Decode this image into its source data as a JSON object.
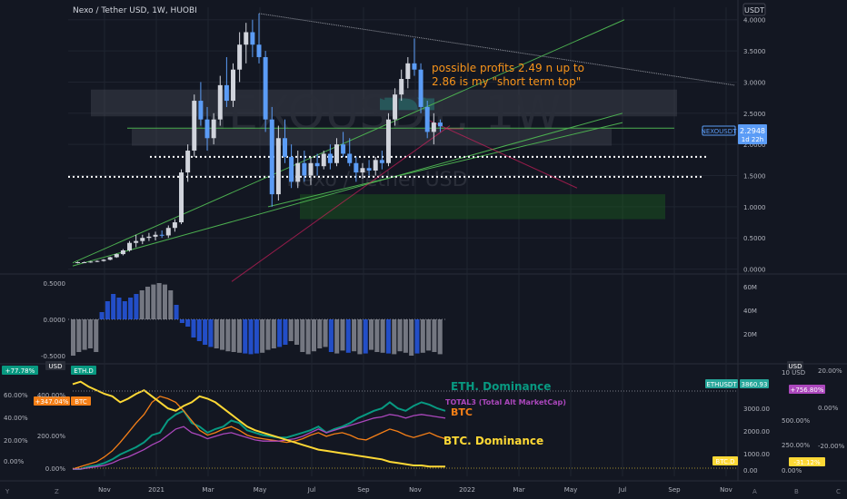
{
  "header": {
    "symbol_title": "Nexo / Tether USD, 1W, HUOBI",
    "watermark": "NEXOUSDT, 1W",
    "watermark_sub": "Nexo / Tether USD"
  },
  "annotation": {
    "line1": "possible profits 2.49 n up to",
    "line2": "2.86 is my \"short term top\""
  },
  "colors": {
    "up": "#d1d4dc",
    "down": "#5b9cf6",
    "annotation": "#f7931a",
    "bg": "#131722",
    "grid": "#1f2430",
    "axis_text": "#b2b5be",
    "eth": "#26a69a",
    "eth_dom": "#089981",
    "btc": "#f57f17",
    "total3": "#ab47bc",
    "btc_dom": "#fdd835",
    "pink": "#e91e63",
    "green_line": "#4caf50"
  },
  "chart_data": [
    {
      "type": "candlestick",
      "title": "Nexo / Tether USD, 1W, HUOBI",
      "y_ticks": [
        "4.0000",
        "3.5000",
        "3.0000",
        "2.5000",
        "2.0000",
        "1.5000",
        "1.0000",
        "0.5000",
        "0.0000"
      ],
      "ylim": [
        -0.05,
        4.2
      ],
      "x_ticks": [
        "Nov",
        "2021",
        "Mar",
        "May",
        "Jul",
        "Sep",
        "Nov",
        "2022",
        "Mar",
        "May",
        "Jul",
        "Sep",
        "Nov"
      ],
      "last_price_label": "NEXOUSDT",
      "last_price": "2.2948",
      "countdown": "1d 22h",
      "candles": [
        [
          0.1,
          0.12,
          0.09,
          0.11
        ],
        [
          0.11,
          0.12,
          0.1,
          0.11
        ],
        [
          0.11,
          0.13,
          0.1,
          0.12
        ],
        [
          0.12,
          0.14,
          0.11,
          0.13
        ],
        [
          0.13,
          0.16,
          0.12,
          0.15
        ],
        [
          0.15,
          0.2,
          0.14,
          0.19
        ],
        [
          0.19,
          0.25,
          0.18,
          0.24
        ],
        [
          0.24,
          0.32,
          0.22,
          0.3
        ],
        [
          0.3,
          0.45,
          0.28,
          0.42
        ],
        [
          0.42,
          0.55,
          0.35,
          0.45
        ],
        [
          0.45,
          0.55,
          0.4,
          0.5
        ],
        [
          0.5,
          0.58,
          0.45,
          0.52
        ],
        [
          0.52,
          0.6,
          0.46,
          0.55
        ],
        [
          0.55,
          0.62,
          0.5,
          0.54
        ],
        [
          0.54,
          0.7,
          0.5,
          0.66
        ],
        [
          0.66,
          0.8,
          0.6,
          0.75
        ],
        [
          0.75,
          1.6,
          0.72,
          1.55
        ],
        [
          1.55,
          2.0,
          1.4,
          1.9
        ],
        [
          1.9,
          2.8,
          1.8,
          2.7
        ],
        [
          2.7,
          3.0,
          2.3,
          2.4
        ],
        [
          2.4,
          2.6,
          1.9,
          2.1
        ],
        [
          2.1,
          2.5,
          2.0,
          2.4
        ],
        [
          2.4,
          3.1,
          2.3,
          2.95
        ],
        [
          2.95,
          3.4,
          2.6,
          2.7
        ],
        [
          2.7,
          3.3,
          2.6,
          3.2
        ],
        [
          3.2,
          3.8,
          3.0,
          3.6
        ],
        [
          3.6,
          3.95,
          3.3,
          3.8
        ],
        [
          3.8,
          4.0,
          3.4,
          3.6
        ],
        [
          3.6,
          4.1,
          3.3,
          3.4
        ],
        [
          3.4,
          3.5,
          2.2,
          2.4
        ],
        [
          2.4,
          2.6,
          1.0,
          1.2
        ],
        [
          1.2,
          2.3,
          1.1,
          2.1
        ],
        [
          2.1,
          2.4,
          1.7,
          1.8
        ],
        [
          1.8,
          2.0,
          1.3,
          1.4
        ],
        [
          1.4,
          1.9,
          1.3,
          1.7
        ],
        [
          1.7,
          1.9,
          1.4,
          1.5
        ],
        [
          1.5,
          1.8,
          1.35,
          1.7
        ],
        [
          1.7,
          1.85,
          1.5,
          1.65
        ],
        [
          1.65,
          1.9,
          1.6,
          1.85
        ],
        [
          1.85,
          2.0,
          1.6,
          1.7
        ],
        [
          1.7,
          2.1,
          1.65,
          2.0
        ],
        [
          2.0,
          2.2,
          1.8,
          1.85
        ],
        [
          1.85,
          2.1,
          1.65,
          1.7
        ],
        [
          1.7,
          1.8,
          1.4,
          1.55
        ],
        [
          1.55,
          1.7,
          1.45,
          1.62
        ],
        [
          1.62,
          1.75,
          1.5,
          1.58
        ],
        [
          1.58,
          1.8,
          1.5,
          1.75
        ],
        [
          1.75,
          1.9,
          1.6,
          1.7
        ],
        [
          1.7,
          2.5,
          1.65,
          2.4
        ],
        [
          2.4,
          2.9,
          2.3,
          2.8
        ],
        [
          2.8,
          3.2,
          2.7,
          3.05
        ],
        [
          3.05,
          3.4,
          2.9,
          3.3
        ],
        [
          3.3,
          3.7,
          3.1,
          3.2
        ],
        [
          3.2,
          3.3,
          2.5,
          2.6
        ],
        [
          2.6,
          2.7,
          2.1,
          2.2
        ],
        [
          2.2,
          2.5,
          2.0,
          2.35
        ],
        [
          2.35,
          2.4,
          2.2,
          2.29
        ]
      ]
    },
    {
      "type": "bar",
      "title": "",
      "y_ticks_left": [
        "0.5000",
        "0.0000",
        "-0.5000"
      ],
      "y_ticks_right": [
        "60M",
        "40M",
        "20M"
      ],
      "ylim": [
        -0.6,
        0.6
      ],
      "values": [
        -0.5,
        -0.45,
        -0.42,
        -0.4,
        -0.45,
        0.1,
        0.25,
        0.35,
        0.3,
        0.25,
        0.3,
        0.35,
        0.4,
        0.45,
        0.48,
        0.5,
        0.48,
        0.4,
        0.2,
        -0.05,
        -0.1,
        -0.25,
        -0.3,
        -0.35,
        -0.38,
        -0.4,
        -0.42,
        -0.44,
        -0.45,
        -0.46,
        -0.47,
        -0.48,
        -0.47,
        -0.46,
        -0.42,
        -0.4,
        -0.38,
        -0.35,
        -0.3,
        -0.35,
        -0.45,
        -0.48,
        -0.44,
        -0.4,
        -0.38,
        -0.45,
        -0.47,
        -0.43,
        -0.46,
        -0.44,
        -0.48,
        -0.47,
        -0.42,
        -0.45,
        -0.46,
        -0.47,
        -0.48,
        -0.44,
        -0.46,
        -0.5,
        -0.47,
        -0.46,
        -0.43,
        -0.45,
        -0.48
      ],
      "colors_index_down": [
        5,
        6,
        7,
        8,
        9,
        10,
        11,
        18,
        19,
        20,
        21,
        22,
        23,
        24,
        30,
        31,
        32,
        36,
        37,
        45,
        48,
        51,
        55,
        60
      ]
    },
    {
      "type": "line",
      "title": "",
      "y_ticks_left": [
        "60.00%",
        "40.00%",
        "20.00%",
        "0.00%"
      ],
      "y_ticks_right": [
        "3000.00",
        "2000.00",
        "1000.00",
        "0.00"
      ],
      "y_ticks_right2": [
        "10 USD",
        "500.00%",
        "250.00%",
        "0.00%"
      ],
      "y_ticks_right3": [
        "20.00%",
        "0.00%",
        "-20.00%"
      ],
      "y_ticks_left2": [
        "400.00%",
        "200.00%",
        "0.00%"
      ],
      "badges": [
        {
          "text": "+77.78%",
          "color": "#089981"
        },
        {
          "text": "ETH.D",
          "color": "#089981"
        },
        {
          "text": "+347.04%",
          "color": "#f57f17"
        },
        {
          "text": "BTC",
          "color": "#f57f17"
        },
        {
          "text": "ETHUSDT",
          "color": "#26a69a"
        },
        {
          "text": "3860.93",
          "color": "#26a69a"
        },
        {
          "text": "+756.80%",
          "color": "#ab47bc"
        },
        {
          "text": "BTC.D",
          "color": "#fdd835"
        },
        {
          "text": "-31.12%",
          "color": "#fdd835"
        },
        {
          "text": "USD",
          "color": "#2a2e39"
        },
        {
          "text": "USD",
          "color": "#2a2e39"
        }
      ],
      "series": [
        {
          "name": "ETH. Dominance",
          "color": "#089981",
          "values": [
            0,
            0,
            2,
            3,
            5,
            8,
            12,
            15,
            18,
            22,
            28,
            30,
            40,
            45,
            48,
            38,
            35,
            30,
            33,
            35,
            40,
            38,
            32,
            30,
            28,
            27,
            26,
            26,
            28,
            30,
            32,
            35,
            30,
            33,
            35,
            38,
            42,
            45,
            48,
            50,
            55,
            50,
            48,
            52,
            55,
            53,
            50,
            48
          ]
        },
        {
          "name": "BTC",
          "color": "#f57f17",
          "values": [
            0,
            2,
            4,
            6,
            10,
            15,
            22,
            30,
            38,
            45,
            55,
            60,
            58,
            55,
            48,
            40,
            32,
            28,
            30,
            33,
            35,
            32,
            28,
            26,
            25,
            24,
            23,
            22,
            23,
            25,
            28,
            30,
            27,
            29,
            30,
            28,
            25,
            24,
            27,
            30,
            33,
            31,
            28,
            26,
            28,
            30,
            27,
            25
          ]
        },
        {
          "name": "TOTAL3 (Total Alt MarketCap)",
          "color": "#ab47bc",
          "values": [
            0,
            0,
            1,
            2,
            3,
            5,
            8,
            10,
            13,
            16,
            20,
            23,
            28,
            33,
            35,
            30,
            28,
            25,
            27,
            29,
            30,
            28,
            26,
            24,
            23,
            23,
            23,
            24,
            25,
            27,
            30,
            33,
            30,
            32,
            34,
            36,
            38,
            40,
            42,
            43,
            45,
            44,
            42,
            44,
            45,
            44,
            43,
            42
          ]
        },
        {
          "name": "BTC. Dominance",
          "color": "#fdd835",
          "values": [
            70,
            72,
            68,
            65,
            62,
            60,
            55,
            58,
            62,
            65,
            60,
            55,
            50,
            48,
            52,
            55,
            60,
            58,
            55,
            50,
            45,
            40,
            35,
            32,
            30,
            28,
            26,
            24,
            22,
            20,
            18,
            16,
            15,
            14,
            13,
            12,
            11,
            10,
            9,
            8,
            6,
            5,
            4,
            3,
            3,
            2,
            2,
            2
          ]
        }
      ],
      "legend_labels": [
        "ETH. Dominance",
        "BTC",
        "TOTAL3 (Total Alt MarketCap)",
        "BTC. Dominance"
      ]
    }
  ]
}
